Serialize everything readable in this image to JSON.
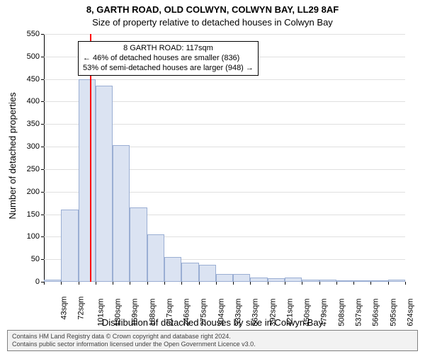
{
  "titles": {
    "line1": "8, GARTH ROAD, OLD COLWYN, COLWYN BAY, LL29 8AF",
    "line2": "Size of property relative to detached houses in Colwyn Bay"
  },
  "chart": {
    "type": "histogram",
    "ylabel": "Number of detached properties",
    "xlabel": "Distribution of detached houses by size in Colwyn Bay",
    "ylim": [
      0,
      550
    ],
    "ytick_step": 50,
    "background_color": "#ffffff",
    "grid_color": "#e0e0e0",
    "bar_fill": "#dbe3f2",
    "bar_border": "#9aaed3",
    "x_labels": [
      "43sqm",
      "72sqm",
      "101sqm",
      "130sqm",
      "159sqm",
      "188sqm",
      "217sqm",
      "246sqm",
      "275sqm",
      "304sqm",
      "333sqm",
      "363sqm",
      "392sqm",
      "421sqm",
      "450sqm",
      "479sqm",
      "508sqm",
      "537sqm",
      "566sqm",
      "595sqm",
      "624sqm"
    ],
    "values": [
      5,
      160,
      450,
      435,
      303,
      165,
      105,
      55,
      42,
      38,
      18,
      18,
      10,
      8,
      10,
      5,
      5,
      3,
      2,
      2,
      5
    ],
    "marker": {
      "x_value": 117,
      "x_min": 43,
      "x_max": 624,
      "color": "#ff0000",
      "width": 2
    }
  },
  "annotation": {
    "line1": "8 GARTH ROAD: 117sqm",
    "line2": "← 46% of detached houses are smaller (836)",
    "line3": "53% of semi-detached houses are larger (948) →"
  },
  "footer": {
    "line1": "Contains HM Land Registry data © Crown copyright and database right 2024.",
    "line2": "Contains public sector information licensed under the Open Government Licence v3.0."
  }
}
